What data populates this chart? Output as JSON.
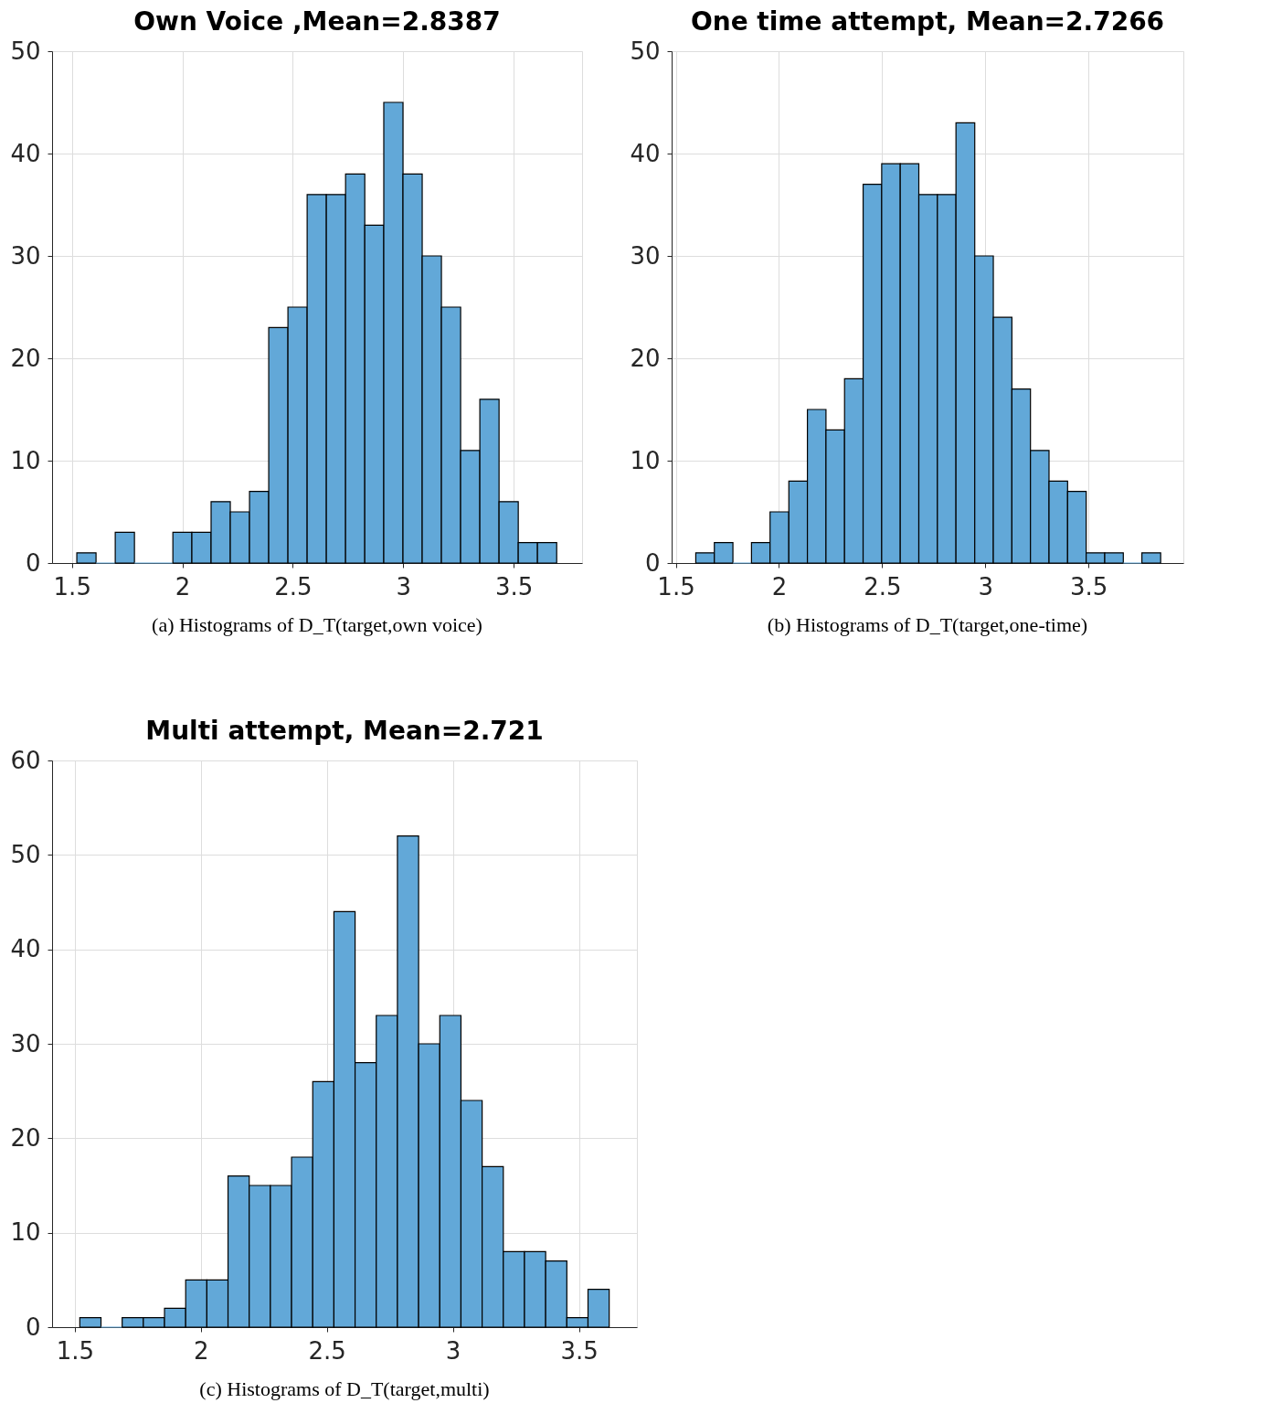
{
  "chart_data": [
    {
      "type": "histogram",
      "title": "Own Voice ,Mean=2.8387",
      "color": "#62a8d8",
      "grid": true,
      "bins": [
        1.522,
        1.609,
        1.696,
        1.783,
        1.87,
        1.957,
        2.043,
        2.13,
        2.217,
        2.304,
        2.391,
        2.478,
        2.565,
        2.652,
        2.739,
        2.826,
        2.912,
        2.999,
        3.086,
        3.173,
        3.26,
        3.347,
        3.434,
        3.521,
        3.608,
        3.695
      ],
      "values": [
        1,
        0,
        3,
        0,
        0,
        3,
        3,
        6,
        5,
        7,
        23,
        25,
        36,
        36,
        38,
        33,
        45,
        38,
        30,
        25,
        11,
        16,
        6,
        2,
        2
      ],
      "xlim": [
        1.41,
        3.81
      ],
      "xticks": [
        1.5,
        2,
        2.5,
        3,
        3.5
      ],
      "ylim": [
        0,
        50
      ],
      "yticks": [
        0,
        10,
        20,
        30,
        40,
        50
      ],
      "annotations": [
        "(a) Histograms of D_T(target,own voice)"
      ]
    },
    {
      "type": "histogram",
      "title": "One time attempt, Mean=2.7266",
      "color": "#62a8d8",
      "grid": true,
      "bins": [
        1.597,
        1.687,
        1.777,
        1.867,
        1.957,
        2.048,
        2.138,
        2.228,
        2.318,
        2.408,
        2.498,
        2.588,
        2.678,
        2.768,
        2.858,
        2.949,
        3.039,
        3.129,
        3.219,
        3.309,
        3.399,
        3.489,
        3.579,
        3.669,
        3.759,
        3.85
      ],
      "values": [
        1,
        2,
        0,
        2,
        5,
        8,
        15,
        13,
        18,
        37,
        39,
        39,
        36,
        36,
        43,
        30,
        24,
        17,
        11,
        8,
        7,
        1,
        1,
        0,
        1
      ],
      "xlim": [
        1.48,
        3.96
      ],
      "xticks": [
        1.5,
        2,
        2.5,
        3,
        3.5
      ],
      "ylim": [
        0,
        50
      ],
      "yticks": [
        0,
        10,
        20,
        30,
        40,
        50
      ],
      "annotations": [
        "(b) Histograms of D_T(target,one-time)"
      ]
    },
    {
      "type": "histogram",
      "title": "Multi attempt, Mean=2.721",
      "color": "#62a8d8",
      "grid": true,
      "bins": [
        1.52,
        1.604,
        1.688,
        1.772,
        1.856,
        1.94,
        2.024,
        2.108,
        2.192,
        2.276,
        2.36,
        2.444,
        2.528,
        2.612,
        2.696,
        2.78,
        2.864,
        2.948,
        3.032,
        3.116,
        3.2,
        3.284,
        3.368,
        3.452,
        3.536,
        3.62
      ],
      "values": [
        1,
        0,
        1,
        1,
        2,
        5,
        5,
        16,
        15,
        15,
        18,
        26,
        44,
        28,
        33,
        52,
        30,
        33,
        24,
        17,
        8,
        8,
        7,
        1,
        4
      ],
      "xlim": [
        1.41,
        3.73
      ],
      "xticks": [
        1.5,
        2,
        2.5,
        3,
        3.5
      ],
      "ylim": [
        0,
        60
      ],
      "yticks": [
        0,
        10,
        20,
        30,
        40,
        50,
        60
      ],
      "annotations": [
        "(c) Histograms of D_T(target,multi)"
      ]
    }
  ]
}
